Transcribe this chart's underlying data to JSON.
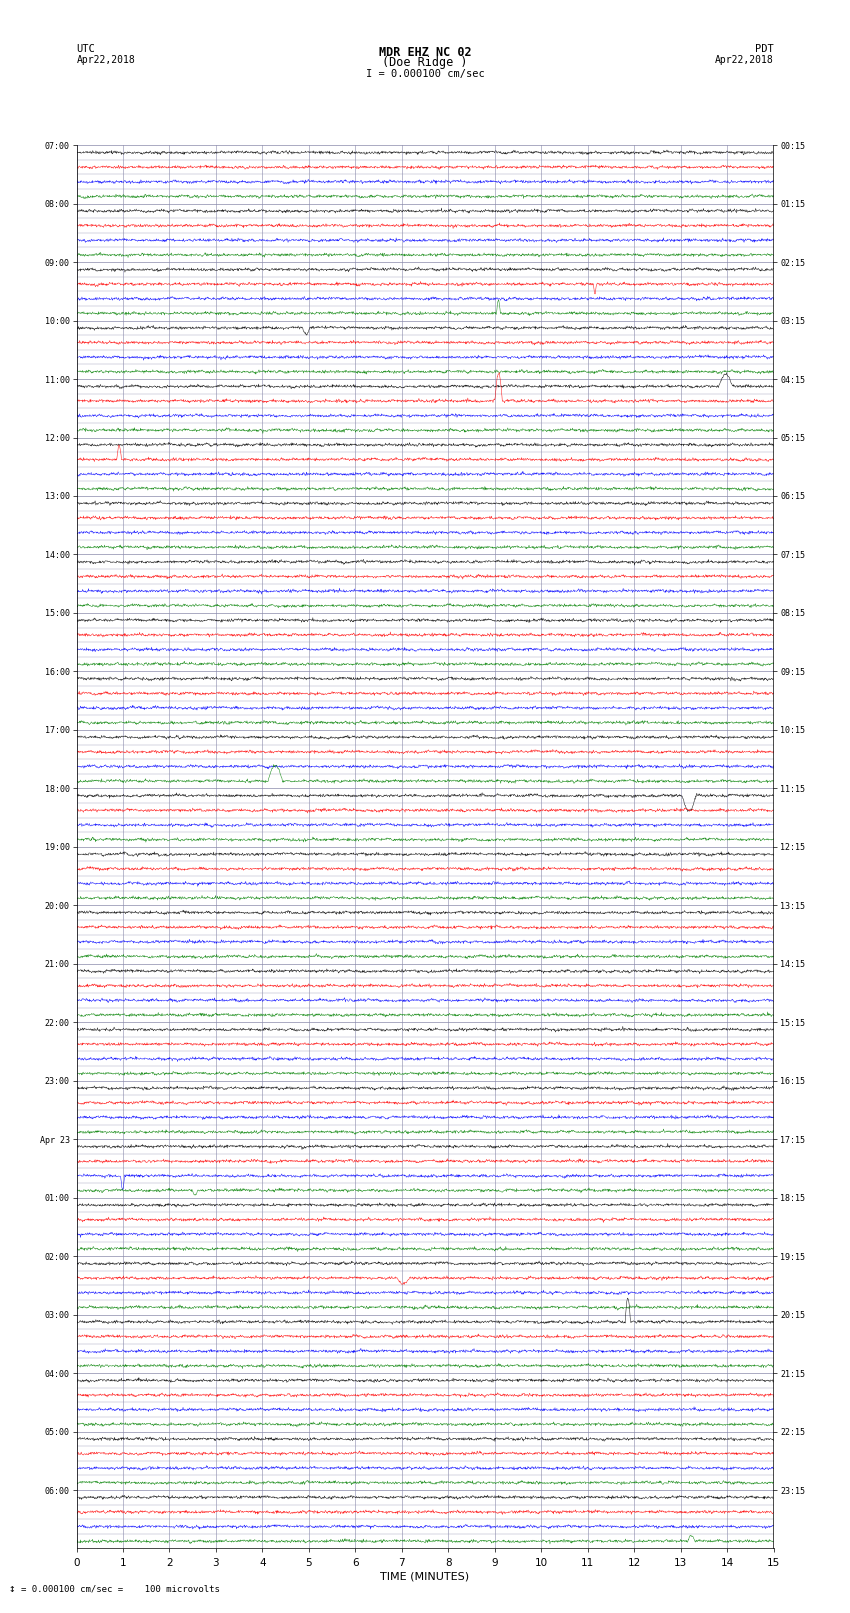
{
  "title_line1": "MDR EHZ NC 02",
  "title_line2": "(Doe Ridge )",
  "scale_text": "I = 0.000100 cm/sec",
  "utc_label": "UTC",
  "utc_date": "Apr22,2018",
  "pdt_label": "PDT",
  "pdt_date": "Apr22,2018",
  "bottom_note": "= 0.000100 cm/sec =    100 microvolts",
  "xlabel": "TIME (MINUTES)",
  "left_times": [
    "07:00",
    "",
    "",
    "",
    "08:00",
    "",
    "",
    "",
    "09:00",
    "",
    "",
    "",
    "10:00",
    "",
    "",
    "",
    "11:00",
    "",
    "",
    "",
    "12:00",
    "",
    "",
    "",
    "13:00",
    "",
    "",
    "",
    "14:00",
    "",
    "",
    "",
    "15:00",
    "",
    "",
    "",
    "16:00",
    "",
    "",
    "",
    "17:00",
    "",
    "",
    "",
    "18:00",
    "",
    "",
    "",
    "19:00",
    "",
    "",
    "",
    "20:00",
    "",
    "",
    "",
    "21:00",
    "",
    "",
    "",
    "22:00",
    "",
    "",
    "",
    "23:00",
    "",
    "",
    "",
    "Apr 23",
    "",
    "",
    "",
    "01:00",
    "",
    "",
    "",
    "02:00",
    "",
    "",
    "",
    "03:00",
    "",
    "",
    "",
    "04:00",
    "",
    "",
    "",
    "05:00",
    "",
    "",
    "",
    "06:00",
    "",
    "",
    ""
  ],
  "right_times": [
    "00:15",
    "",
    "",
    "",
    "01:15",
    "",
    "",
    "",
    "02:15",
    "",
    "",
    "",
    "03:15",
    "",
    "",
    "",
    "04:15",
    "",
    "",
    "",
    "05:15",
    "",
    "",
    "",
    "06:15",
    "",
    "",
    "",
    "07:15",
    "",
    "",
    "",
    "08:15",
    "",
    "",
    "",
    "09:15",
    "",
    "",
    "",
    "10:15",
    "",
    "",
    "",
    "11:15",
    "",
    "",
    "",
    "12:15",
    "",
    "",
    "",
    "13:15",
    "",
    "",
    "",
    "14:15",
    "",
    "",
    "",
    "15:15",
    "",
    "",
    "",
    "16:15",
    "",
    "",
    "",
    "17:15",
    "",
    "",
    "",
    "18:15",
    "",
    "",
    "",
    "19:15",
    "",
    "",
    "",
    "20:15",
    "",
    "",
    "",
    "21:15",
    "",
    "",
    "",
    "22:15",
    "",
    "",
    "",
    "23:15",
    "",
    "",
    ""
  ],
  "n_time_rows": 24,
  "n_cols": 4,
  "trace_colors": [
    "black",
    "red",
    "blue",
    "green"
  ],
  "bg_color": "#ffffff",
  "grid_color": "#8888aa",
  "minutes_per_row": 15,
  "x_ticks": [
    0,
    1,
    2,
    3,
    4,
    5,
    6,
    7,
    8,
    9,
    10,
    11,
    12,
    13,
    14,
    15
  ],
  "samples_per_trace": 1800
}
